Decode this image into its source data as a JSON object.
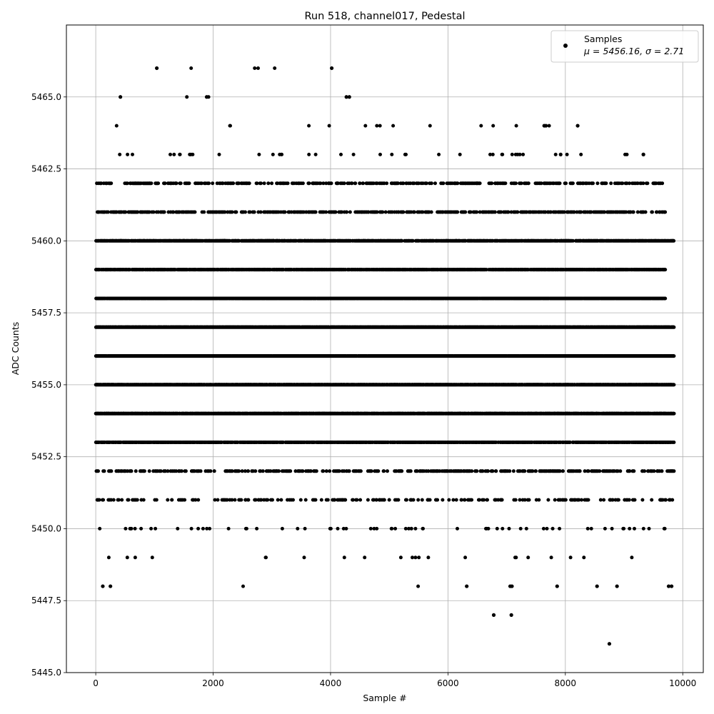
{
  "chart_data": {
    "type": "scatter",
    "title": "Run 518, channel017, Pedestal",
    "xlabel": "Sample #",
    "ylabel": "ADC Counts",
    "xlim": [
      -500,
      10350
    ],
    "ylim": [
      5445.0,
      5467.5
    ],
    "x_ticks": [
      0,
      2000,
      4000,
      6000,
      8000,
      10000
    ],
    "y_ticks": [
      "5445.0",
      "5447.5",
      "5450.0",
      "5452.5",
      "5455.0",
      "5457.5",
      "5460.0",
      "5462.5",
      "5465.0"
    ],
    "grid": true,
    "legend_position": "top-right",
    "legend": {
      "label": "Samples",
      "stats": "μ = 5456.16, σ = 2.71"
    },
    "marker_color": "#000000",
    "n_samples": 9850,
    "bands": [
      {
        "y": 5446,
        "density": 0.0005,
        "x_range": [
          8700,
          8800
        ]
      },
      {
        "y": 5447,
        "density": 0.001,
        "x_range": [
          6700,
          7200
        ]
      },
      {
        "y": 5448,
        "density": 0.003,
        "x_range": [
          0,
          9850
        ]
      },
      {
        "y": 5449,
        "density": 0.01,
        "x_range": [
          0,
          9850
        ]
      },
      {
        "y": 5450,
        "density": 0.02,
        "x_range": [
          0,
          9850
        ]
      },
      {
        "y": 5451,
        "density": 0.08,
        "x_range": [
          0,
          9850
        ]
      },
      {
        "y": 5452,
        "density": 0.15,
        "x_range": [
          0,
          9850
        ]
      },
      {
        "y": 5453,
        "density": 0.45,
        "x_range": [
          0,
          9850
        ]
      },
      {
        "y": 5454,
        "density": 0.8,
        "x_range": [
          0,
          9850
        ]
      },
      {
        "y": 5455,
        "density": 0.85,
        "x_range": [
          0,
          9850
        ]
      },
      {
        "y": 5456,
        "density": 0.95,
        "x_range": [
          0,
          9850
        ]
      },
      {
        "y": 5457,
        "density": 0.95,
        "x_range": [
          0,
          9850
        ]
      },
      {
        "y": 5458,
        "density": 0.8,
        "x_range": [
          0,
          9700
        ]
      },
      {
        "y": 5459,
        "density": 0.55,
        "x_range": [
          0,
          9700
        ]
      },
      {
        "y": 5460,
        "density": 0.4,
        "x_range": [
          0,
          9850
        ]
      },
      {
        "y": 5461,
        "density": 0.2,
        "x_range": [
          0,
          9700
        ]
      },
      {
        "y": 5462,
        "density": 0.15,
        "x_range": [
          0,
          9700
        ]
      },
      {
        "y": 5463,
        "density": 0.02,
        "x_range": [
          0,
          9400
        ]
      },
      {
        "y": 5464,
        "density": 0.006,
        "x_range": [
          0,
          8300
        ]
      },
      {
        "y": 5465,
        "density": 0.002,
        "x_range": [
          0,
          4400
        ]
      },
      {
        "y": 5466,
        "density": 0.001,
        "x_range": [
          1000,
          4100
        ]
      }
    ],
    "isolated_points": [
      {
        "x": 1040,
        "y": 5466
      },
      {
        "x": 4020,
        "y": 5466
      },
      {
        "x": 420,
        "y": 5465
      },
      {
        "x": 1890,
        "y": 5465
      },
      {
        "x": 4270,
        "y": 5465
      },
      {
        "x": 4320,
        "y": 5465
      },
      {
        "x": 8750,
        "y": 5446
      },
      {
        "x": 6780,
        "y": 5447
      },
      {
        "x": 7080,
        "y": 5447
      },
      {
        "x": 120,
        "y": 5448
      },
      {
        "x": 250,
        "y": 5448
      },
      {
        "x": 6320,
        "y": 5448
      },
      {
        "x": 7060,
        "y": 5448
      },
      {
        "x": 7090,
        "y": 5448
      },
      {
        "x": 7860,
        "y": 5448
      },
      {
        "x": 8540,
        "y": 5448
      },
      {
        "x": 8880,
        "y": 5448
      },
      {
        "x": 9760,
        "y": 5448
      },
      {
        "x": 9810,
        "y": 5448
      },
      {
        "x": 7920,
        "y": 5463
      },
      {
        "x": 9330,
        "y": 5463
      },
      {
        "x": 7640,
        "y": 5464
      },
      {
        "x": 7670,
        "y": 5464
      },
      {
        "x": 8210,
        "y": 5464
      }
    ]
  }
}
